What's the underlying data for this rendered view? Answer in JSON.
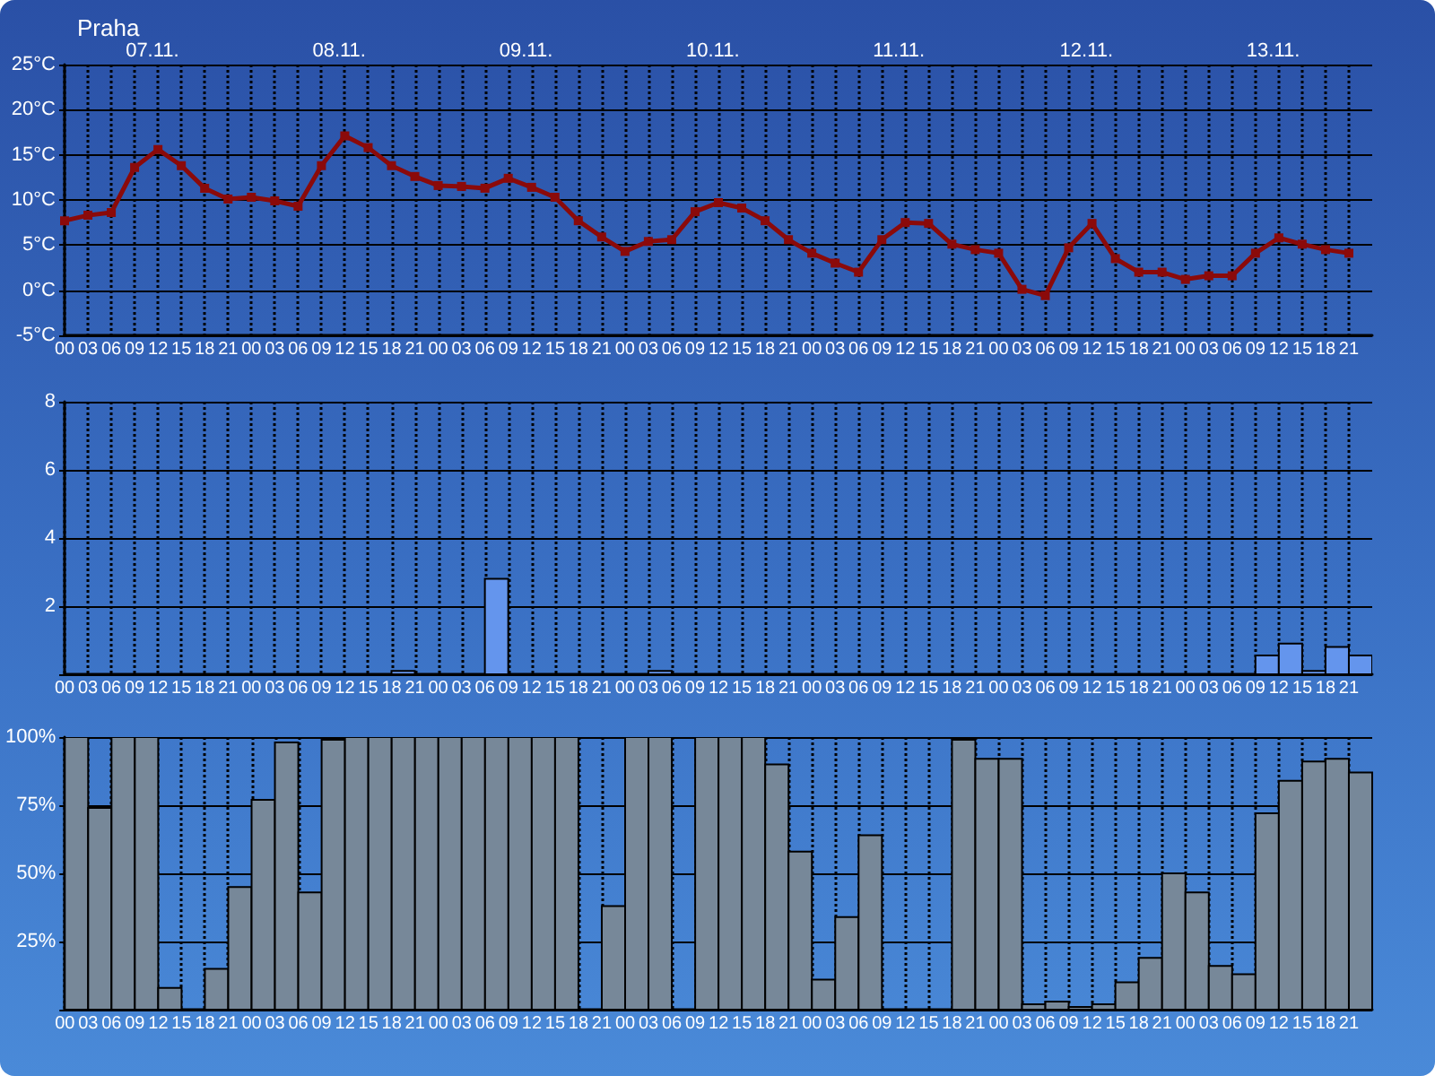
{
  "chart_data": [
    {
      "type": "line",
      "title": "Praha",
      "color": "#8b0a0a",
      "marker": "square",
      "line_style": "solid",
      "grid": true,
      "x": [
        0,
        3,
        6,
        9,
        12,
        15,
        18,
        21,
        24,
        27,
        30,
        33,
        36,
        39,
        42,
        45,
        48,
        51,
        54,
        57,
        60,
        63,
        66,
        69,
        72,
        75,
        78,
        81,
        84,
        87,
        90,
        93,
        96,
        99,
        102,
        105,
        108,
        111,
        114,
        117,
        120,
        123,
        126,
        129,
        132,
        135,
        138,
        141,
        144,
        147,
        150,
        153,
        156,
        159,
        162,
        165
      ],
      "values": [
        7.7,
        8.3,
        8.6,
        13.6,
        15.6,
        13.8,
        11.3,
        10.1,
        10.3,
        9.9,
        9.3,
        13.8,
        17.1,
        15.8,
        13.8,
        12.6,
        11.6,
        11.5,
        11.3,
        12.4,
        11.4,
        10.3,
        7.7,
        5.9,
        4.3,
        5.4,
        5.6,
        8.7,
        9.7,
        9.1,
        7.7,
        5.6,
        4.1,
        3.0,
        2.0,
        5.6,
        7.5,
        7.4,
        5.1,
        4.5,
        4.1,
        0.1,
        -0.6,
        4.7,
        7.4,
        3.5,
        2.0,
        2.0,
        1.2,
        1.6,
        1.6,
        4.1,
        5.8,
        5.1,
        4.5,
        4.1
      ],
      "xlim": [
        0,
        168
      ],
      "xticks": [
        {
          "value": 0,
          "label": "00"
        },
        {
          "value": 3,
          "label": "03"
        },
        {
          "value": 6,
          "label": "06"
        },
        {
          "value": 9,
          "label": "09"
        },
        {
          "value": 12,
          "label": "12"
        },
        {
          "value": 15,
          "label": "15"
        },
        {
          "value": 18,
          "label": "18"
        },
        {
          "value": 21,
          "label": "21"
        },
        {
          "value": 24,
          "label": "00"
        },
        {
          "value": 27,
          "label": "03"
        },
        {
          "value": 30,
          "label": "06"
        },
        {
          "value": 33,
          "label": "09"
        },
        {
          "value": 36,
          "label": "12"
        },
        {
          "value": 39,
          "label": "15"
        },
        {
          "value": 42,
          "label": "18"
        },
        {
          "value": 45,
          "label": "21"
        },
        {
          "value": 48,
          "label": "00"
        },
        {
          "value": 51,
          "label": "03"
        },
        {
          "value": 54,
          "label": "06"
        },
        {
          "value": 57,
          "label": "09"
        },
        {
          "value": 60,
          "label": "12"
        },
        {
          "value": 63,
          "label": "15"
        },
        {
          "value": 66,
          "label": "18"
        },
        {
          "value": 69,
          "label": "21"
        },
        {
          "value": 72,
          "label": "00"
        },
        {
          "value": 75,
          "label": "03"
        },
        {
          "value": 78,
          "label": "06"
        },
        {
          "value": 81,
          "label": "09"
        },
        {
          "value": 84,
          "label": "12"
        },
        {
          "value": 87,
          "label": "15"
        },
        {
          "value": 90,
          "label": "18"
        },
        {
          "value": 93,
          "label": "21"
        },
        {
          "value": 96,
          "label": "00"
        },
        {
          "value": 99,
          "label": "03"
        },
        {
          "value": 102,
          "label": "06"
        },
        {
          "value": 105,
          "label": "09"
        },
        {
          "value": 108,
          "label": "12"
        },
        {
          "value": 111,
          "label": "15"
        },
        {
          "value": 114,
          "label": "18"
        },
        {
          "value": 117,
          "label": "21"
        },
        {
          "value": 120,
          "label": "00"
        },
        {
          "value": 123,
          "label": "03"
        },
        {
          "value": 126,
          "label": "06"
        },
        {
          "value": 129,
          "label": "09"
        },
        {
          "value": 132,
          "label": "12"
        },
        {
          "value": 135,
          "label": "15"
        },
        {
          "value": 138,
          "label": "18"
        },
        {
          "value": 141,
          "label": "21"
        },
        {
          "value": 144,
          "label": "00"
        },
        {
          "value": 147,
          "label": "03"
        },
        {
          "value": 150,
          "label": "06"
        },
        {
          "value": 153,
          "label": "09"
        },
        {
          "value": 156,
          "label": "12"
        },
        {
          "value": 159,
          "label": "15"
        },
        {
          "value": 162,
          "label": "18"
        },
        {
          "value": 165,
          "label": "21"
        }
      ],
      "annotations": [
        "07.11.",
        "08.11.",
        "09.11.",
        "10.11.",
        "11.11.",
        "12.11.",
        "13.11."
      ],
      "ylim": [
        -5,
        25
      ],
      "yticks": [
        {
          "value": -5,
          "label": "-5°C"
        },
        {
          "value": 0,
          "label": "0°C"
        },
        {
          "value": 5,
          "label": "5°C"
        },
        {
          "value": 10,
          "label": "10°C"
        },
        {
          "value": 15,
          "label": "15°C"
        },
        {
          "value": 20,
          "label": "20°C"
        },
        {
          "value": 25,
          "label": "25°C"
        }
      ]
    },
    {
      "type": "bar",
      "color": "#6495ed",
      "grid": true,
      "x": [
        1.5,
        4.5,
        7.5,
        10.5,
        13.5,
        16.5,
        19.5,
        22.5,
        25.5,
        28.5,
        31.5,
        34.5,
        37.5,
        40.5,
        43.5,
        46.5,
        49.5,
        52.5,
        55.5,
        58.5,
        61.5,
        64.5,
        67.5,
        70.5,
        73.5,
        76.5,
        79.5,
        82.5,
        85.5,
        88.5,
        91.5,
        94.5,
        97.5,
        100.5,
        103.5,
        106.5,
        109.5,
        112.5,
        115.5,
        118.5,
        121.5,
        124.5,
        127.5,
        130.5,
        133.5,
        136.5,
        139.5,
        142.5,
        145.5,
        148.5,
        151.5,
        154.5,
        157.5,
        160.5,
        163.5,
        166.5
      ],
      "values": [
        0,
        0,
        0,
        0,
        0,
        0,
        0,
        0,
        0,
        0,
        0,
        0,
        0,
        0,
        0.1,
        0,
        0,
        0,
        2.8,
        0,
        0,
        0,
        0,
        0,
        0,
        0.1,
        0,
        0,
        0,
        0,
        0,
        0,
        0,
        0,
        0,
        0,
        0,
        0,
        0,
        0,
        0,
        0,
        0,
        0,
        0,
        0,
        0,
        0,
        0,
        0,
        0,
        0.55,
        0.9,
        0.1,
        0.8,
        0.55
      ],
      "xlim": [
        0,
        168
      ],
      "xticks": [
        {
          "value": 0,
          "label": "00"
        },
        {
          "value": 3,
          "label": "03"
        },
        {
          "value": 6,
          "label": "06"
        },
        {
          "value": 9,
          "label": "09"
        },
        {
          "value": 12,
          "label": "12"
        },
        {
          "value": 15,
          "label": "15"
        },
        {
          "value": 18,
          "label": "18"
        },
        {
          "value": 21,
          "label": "21"
        },
        {
          "value": 24,
          "label": "00"
        },
        {
          "value": 27,
          "label": "03"
        },
        {
          "value": 30,
          "label": "06"
        },
        {
          "value": 33,
          "label": "09"
        },
        {
          "value": 36,
          "label": "12"
        },
        {
          "value": 39,
          "label": "15"
        },
        {
          "value": 42,
          "label": "18"
        },
        {
          "value": 45,
          "label": "21"
        },
        {
          "value": 48,
          "label": "00"
        },
        {
          "value": 51,
          "label": "03"
        },
        {
          "value": 54,
          "label": "06"
        },
        {
          "value": 57,
          "label": "09"
        },
        {
          "value": 60,
          "label": "12"
        },
        {
          "value": 63,
          "label": "15"
        },
        {
          "value": 66,
          "label": "18"
        },
        {
          "value": 69,
          "label": "21"
        },
        {
          "value": 72,
          "label": "00"
        },
        {
          "value": 75,
          "label": "03"
        },
        {
          "value": 78,
          "label": "06"
        },
        {
          "value": 81,
          "label": "09"
        },
        {
          "value": 84,
          "label": "12"
        },
        {
          "value": 87,
          "label": "15"
        },
        {
          "value": 90,
          "label": "18"
        },
        {
          "value": 93,
          "label": "21"
        },
        {
          "value": 96,
          "label": "00"
        },
        {
          "value": 99,
          "label": "03"
        },
        {
          "value": 102,
          "label": "06"
        },
        {
          "value": 105,
          "label": "09"
        },
        {
          "value": 108,
          "label": "12"
        },
        {
          "value": 111,
          "label": "15"
        },
        {
          "value": 114,
          "label": "18"
        },
        {
          "value": 117,
          "label": "21"
        },
        {
          "value": 120,
          "label": "00"
        },
        {
          "value": 123,
          "label": "03"
        },
        {
          "value": 126,
          "label": "06"
        },
        {
          "value": 129,
          "label": "09"
        },
        {
          "value": 132,
          "label": "12"
        },
        {
          "value": 135,
          "label": "15"
        },
        {
          "value": 138,
          "label": "18"
        },
        {
          "value": 141,
          "label": "21"
        },
        {
          "value": 144,
          "label": "00"
        },
        {
          "value": 147,
          "label": "03"
        },
        {
          "value": 150,
          "label": "06"
        },
        {
          "value": 153,
          "label": "09"
        },
        {
          "value": 156,
          "label": "12"
        },
        {
          "value": 159,
          "label": "15"
        },
        {
          "value": 162,
          "label": "18"
        },
        {
          "value": 165,
          "label": "21"
        }
      ],
      "ylim": [
        0,
        8
      ],
      "yticks": [
        {
          "value": 0,
          "label": null
        },
        2,
        4,
        6,
        8
      ]
    },
    {
      "type": "bar",
      "color": "#778899",
      "grid": true,
      "x": [
        1.5,
        4.5,
        7.5,
        10.5,
        13.5,
        16.5,
        19.5,
        22.5,
        25.5,
        28.5,
        31.5,
        34.5,
        37.5,
        40.5,
        43.5,
        46.5,
        49.5,
        52.5,
        55.5,
        58.5,
        61.5,
        64.5,
        67.5,
        70.5,
        73.5,
        76.5,
        79.5,
        82.5,
        85.5,
        88.5,
        91.5,
        94.5,
        97.5,
        100.5,
        103.5,
        106.5,
        109.5,
        112.5,
        115.5,
        118.5,
        121.5,
        124.5,
        127.5,
        130.5,
        133.5,
        136.5,
        139.5,
        142.5,
        145.5,
        148.5,
        151.5,
        154.5,
        157.5,
        160.5,
        163.5,
        166.5
      ],
      "values": [
        100,
        74,
        100,
        100,
        8,
        0,
        15,
        45,
        77,
        98,
        43,
        99,
        100,
        100,
        100,
        100,
        100,
        100,
        100,
        100,
        100,
        100,
        0,
        38,
        100,
        100,
        0,
        100,
        100,
        100,
        90,
        58,
        11,
        34,
        64,
        0,
        0,
        0,
        99,
        92,
        92,
        2,
        3,
        1,
        2,
        10,
        19,
        50,
        43,
        16,
        13,
        72,
        84,
        91,
        92,
        87
      ],
      "xlim": [
        0,
        168
      ],
      "xticks": [
        {
          "value": 0,
          "label": "00"
        },
        {
          "value": 3,
          "label": "03"
        },
        {
          "value": 6,
          "label": "06"
        },
        {
          "value": 9,
          "label": "09"
        },
        {
          "value": 12,
          "label": "12"
        },
        {
          "value": 15,
          "label": "15"
        },
        {
          "value": 18,
          "label": "18"
        },
        {
          "value": 21,
          "label": "21"
        },
        {
          "value": 24,
          "label": "00"
        },
        {
          "value": 27,
          "label": "03"
        },
        {
          "value": 30,
          "label": "06"
        },
        {
          "value": 33,
          "label": "09"
        },
        {
          "value": 36,
          "label": "12"
        },
        {
          "value": 39,
          "label": "15"
        },
        {
          "value": 42,
          "label": "18"
        },
        {
          "value": 45,
          "label": "21"
        },
        {
          "value": 48,
          "label": "00"
        },
        {
          "value": 51,
          "label": "03"
        },
        {
          "value": 54,
          "label": "06"
        },
        {
          "value": 57,
          "label": "09"
        },
        {
          "value": 60,
          "label": "12"
        },
        {
          "value": 63,
          "label": "15"
        },
        {
          "value": 66,
          "label": "18"
        },
        {
          "value": 69,
          "label": "21"
        },
        {
          "value": 72,
          "label": "00"
        },
        {
          "value": 75,
          "label": "03"
        },
        {
          "value": 78,
          "label": "06"
        },
        {
          "value": 81,
          "label": "09"
        },
        {
          "value": 84,
          "label": "12"
        },
        {
          "value": 87,
          "label": "15"
        },
        {
          "value": 90,
          "label": "18"
        },
        {
          "value": 93,
          "label": "21"
        },
        {
          "value": 96,
          "label": "00"
        },
        {
          "value": 99,
          "label": "03"
        },
        {
          "value": 102,
          "label": "06"
        },
        {
          "value": 105,
          "label": "09"
        },
        {
          "value": 108,
          "label": "12"
        },
        {
          "value": 111,
          "label": "15"
        },
        {
          "value": 114,
          "label": "18"
        },
        {
          "value": 117,
          "label": "21"
        },
        {
          "value": 120,
          "label": "00"
        },
        {
          "value": 123,
          "label": "03"
        },
        {
          "value": 126,
          "label": "06"
        },
        {
          "value": 129,
          "label": "09"
        },
        {
          "value": 132,
          "label": "12"
        },
        {
          "value": 135,
          "label": "15"
        },
        {
          "value": 138,
          "label": "18"
        },
        {
          "value": 141,
          "label": "21"
        },
        {
          "value": 144,
          "label": "00"
        },
        {
          "value": 147,
          "label": "03"
        },
        {
          "value": 150,
          "label": "06"
        },
        {
          "value": 153,
          "label": "09"
        },
        {
          "value": 156,
          "label": "12"
        },
        {
          "value": 159,
          "label": "15"
        },
        {
          "value": 162,
          "label": "18"
        },
        {
          "value": 165,
          "label": "21"
        }
      ],
      "ylim": [
        0,
        100
      ],
      "yticks": [
        {
          "value": 0,
          "label": null
        },
        {
          "value": 25,
          "label": "25%"
        },
        {
          "value": 50,
          "label": "50%"
        },
        {
          "value": 75,
          "label": "75%"
        },
        {
          "value": 100,
          "label": "100%"
        }
      ]
    }
  ]
}
